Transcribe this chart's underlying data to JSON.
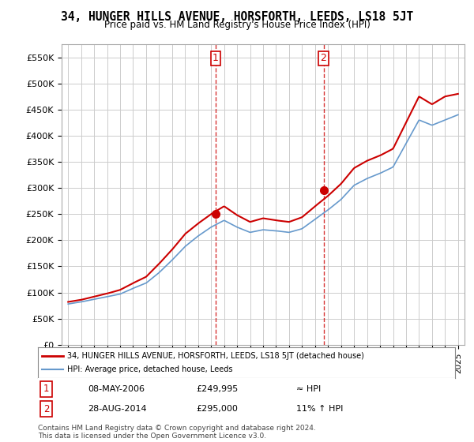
{
  "title": "34, HUNGER HILLS AVENUE, HORSFORTH, LEEDS, LS18 5JT",
  "subtitle": "Price paid vs. HM Land Registry's House Price Index (HPI)",
  "legend_line1": "34, HUNGER HILLS AVENUE, HORSFORTH, LEEDS, LS18 5JT (detached house)",
  "legend_line2": "HPI: Average price, detached house, Leeds",
  "annotation1_label": "1",
  "annotation1_date": "08-MAY-2006",
  "annotation1_price": "£249,995",
  "annotation1_hpi": "≈ HPI",
  "annotation2_label": "2",
  "annotation2_date": "28-AUG-2014",
  "annotation2_price": "£295,000",
  "annotation2_hpi": "11% ↑ HPI",
  "footer": "Contains HM Land Registry data © Crown copyright and database right 2024.\nThis data is licensed under the Open Government Licence v3.0.",
  "price_color": "#cc0000",
  "hpi_color": "#6699cc",
  "annotation_color": "#cc0000",
  "background_color": "#ffffff",
  "grid_color": "#cccccc",
  "ylim": [
    0,
    575000
  ],
  "yticks": [
    0,
    50000,
    100000,
    150000,
    200000,
    250000,
    300000,
    350000,
    400000,
    450000,
    500000,
    550000
  ],
  "sale1_year": 2006.35,
  "sale1_price": 249995,
  "sale2_year": 2014.65,
  "sale2_price": 295000,
  "hpi_years": [
    1995,
    1996,
    1997,
    1998,
    1999,
    2000,
    2001,
    2002,
    2003,
    2004,
    2005,
    2006,
    2007,
    2008,
    2009,
    2010,
    2011,
    2012,
    2013,
    2014,
    2015,
    2016,
    2017,
    2018,
    2019,
    2020,
    2021,
    2022,
    2023,
    2024,
    2025
  ],
  "hpi_values": [
    78000,
    82000,
    87000,
    92000,
    97000,
    108000,
    118000,
    138000,
    162000,
    188000,
    208000,
    225000,
    238000,
    225000,
    215000,
    220000,
    218000,
    215000,
    222000,
    240000,
    258000,
    278000,
    305000,
    318000,
    328000,
    340000,
    385000,
    430000,
    420000,
    430000,
    440000
  ],
  "price_years": [
    1995,
    1996,
    1997,
    1998,
    1999,
    2000,
    2001,
    2002,
    2003,
    2004,
    2005,
    2006,
    2007,
    2008,
    2009,
    2010,
    2011,
    2012,
    2013,
    2014,
    2015,
    2016,
    2017,
    2018,
    2019,
    2020,
    2021,
    2022,
    2023,
    2024,
    2025
  ],
  "price_values": [
    82000,
    86000,
    92000,
    98000,
    105000,
    118000,
    130000,
    155000,
    182000,
    212000,
    232000,
    249995,
    265000,
    248000,
    235000,
    242000,
    238000,
    235000,
    244000,
    265000,
    285000,
    308000,
    338000,
    352000,
    362000,
    375000,
    425000,
    475000,
    460000,
    475000,
    480000
  ]
}
